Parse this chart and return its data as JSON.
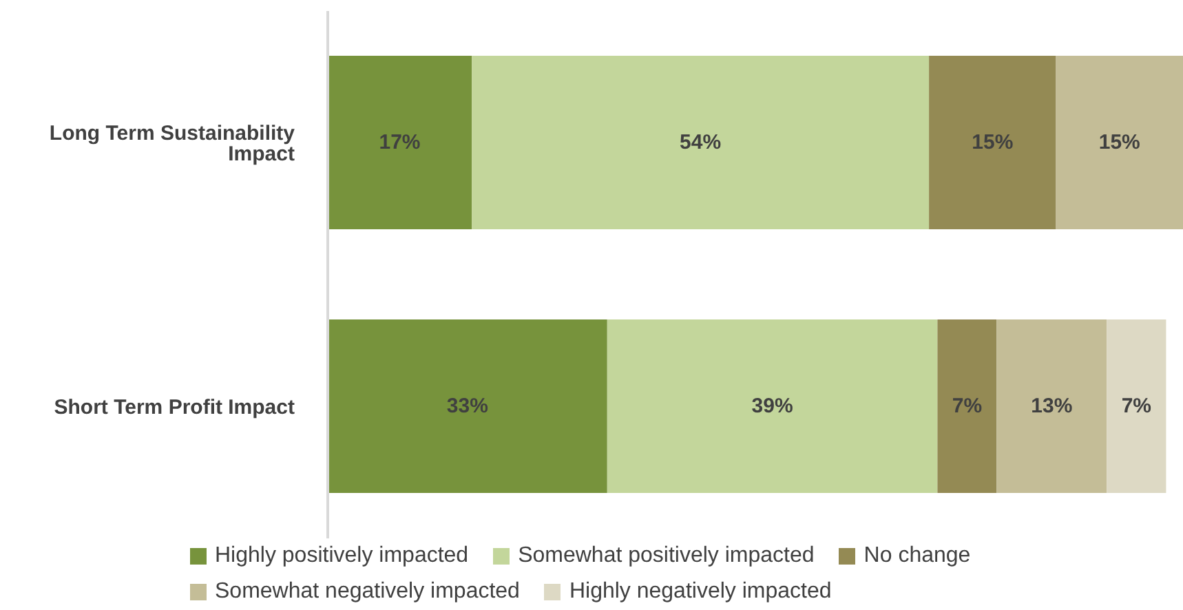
{
  "chart_data": {
    "type": "bar",
    "orientation": "horizontal",
    "stacked": true,
    "categories": [
      "Long Term Sustainability Impact",
      "Short Term Profit Impact"
    ],
    "legend": "bottom",
    "series": [
      {
        "name": "Highly positively impacted",
        "color": "#77933c",
        "values": [
          17,
          33
        ],
        "value_labels": [
          "17%",
          "33%"
        ]
      },
      {
        "name": "Somewhat positively impacted",
        "color": "#c3d69b",
        "values": [
          54,
          39
        ],
        "value_labels": [
          "54%",
          "39%"
        ]
      },
      {
        "name": "No change",
        "color": "#948a54",
        "values": [
          15,
          7
        ],
        "value_labels": [
          "15%",
          "7%"
        ]
      },
      {
        "name": "Somewhat negatively impacted",
        "color": "#c4bd97",
        "values": [
          15,
          13
        ],
        "value_labels": [
          "15%",
          "13%"
        ]
      },
      {
        "name": "Highly negatively impacted",
        "color": "#ddd9c4",
        "values": [
          null,
          7
        ],
        "value_labels": [
          null,
          "7%"
        ]
      }
    ]
  }
}
